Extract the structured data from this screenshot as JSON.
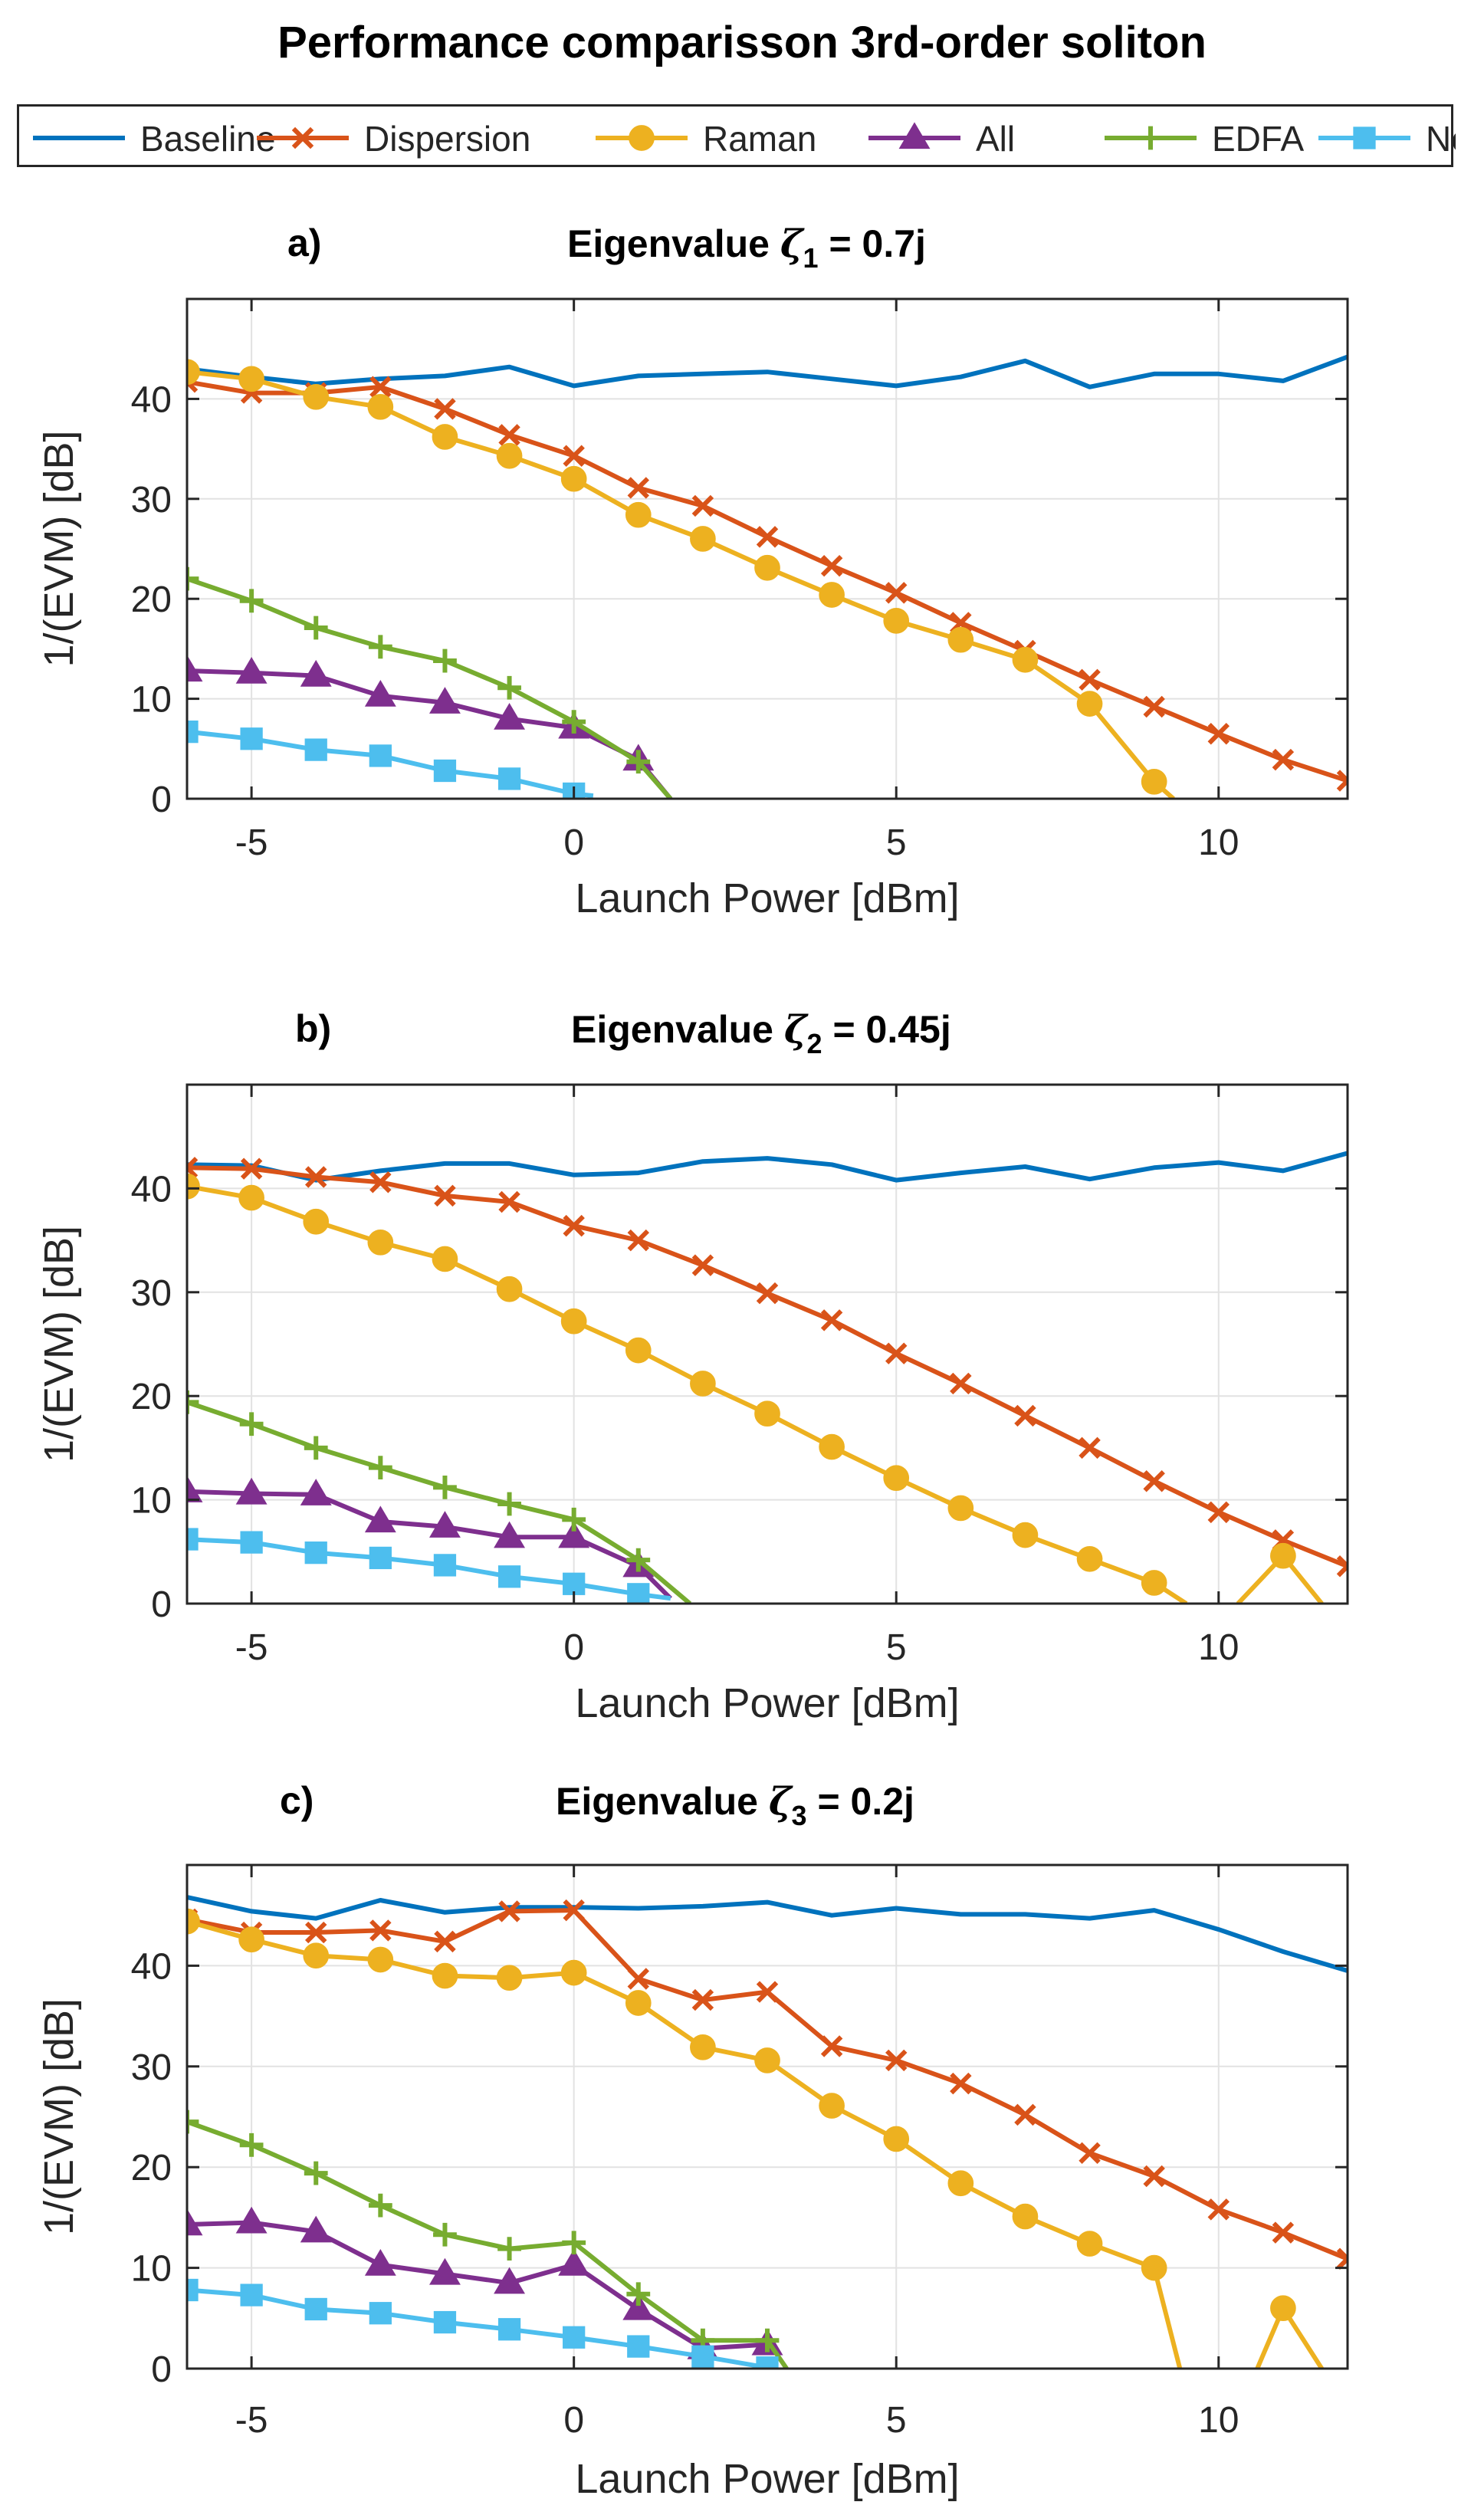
{
  "title": "Performance comparisson 3rd-order soliton",
  "legend": {
    "entries": [
      {
        "name": "Baseline",
        "color": "#0072BD",
        "marker": "none"
      },
      {
        "name": "Dispersion",
        "color": "#D95319",
        "marker": "x"
      },
      {
        "name": "Raman",
        "color": "#EDB120",
        "marker": "circle"
      },
      {
        "name": "All",
        "color": "#7E2F8E",
        "marker": "triangle"
      },
      {
        "name": "EDFA",
        "color": "#77AC30",
        "marker": "plus"
      },
      {
        "name": "Noise",
        "color": "#4DBEEE",
        "marker": "square"
      }
    ]
  },
  "chart_data": [
    {
      "type": "line",
      "label": "a)",
      "title_prefix": "Eigenvalue ",
      "title_symbol": "ζ",
      "title_subscript": "1",
      "title_suffix": " = 0.7j",
      "xlabel": "Launch Power [dBm]",
      "ylabel": "1/(EVM) [dB]",
      "xlim": [
        -6,
        12
      ],
      "ylim": [
        0,
        50
      ],
      "xticks": [
        -5,
        0,
        5,
        10
      ],
      "yticks": [
        0,
        10,
        20,
        30,
        40
      ],
      "grid": true,
      "series": [
        {
          "name": "Baseline",
          "x": [
            -6,
            -5,
            -4,
            -3,
            -2,
            -1,
            0,
            1,
            2,
            3,
            4,
            5,
            6,
            7,
            8,
            9,
            10,
            11,
            12
          ],
          "y": [
            43,
            42.2,
            41.5,
            42,
            42.3,
            43.2,
            41.3,
            42.3,
            42.5,
            42.7,
            42,
            41.3,
            42.2,
            43.8,
            41.2,
            42.5,
            42.5,
            41.8,
            44.2
          ]
        },
        {
          "name": "Dispersion",
          "x": [
            -6,
            -5,
            -4,
            -3,
            -2,
            -1,
            0,
            1,
            2,
            3,
            4,
            5,
            6,
            7,
            8,
            9,
            10,
            11,
            12
          ],
          "y": [
            41.7,
            40.6,
            40.6,
            41.2,
            39,
            36.4,
            34.3,
            31.1,
            29.3,
            26.2,
            23.3,
            20.6,
            17.6,
            14.8,
            11.9,
            9.2,
            6.5,
            3.9,
            1.8
          ]
        },
        {
          "name": "Raman",
          "x": [
            -6,
            -5,
            -4,
            -3,
            -2,
            -1,
            0,
            1,
            2,
            3,
            4,
            5,
            6,
            7,
            8,
            9,
            9.3
          ],
          "y": [
            42.7,
            42,
            40.2,
            39.2,
            36.2,
            34.3,
            32,
            28.4,
            26,
            23.1,
            20.4,
            17.8,
            15.9,
            13.9,
            9.5,
            1.7,
            0
          ]
        },
        {
          "name": "All",
          "x": [
            -6,
            -5,
            -4,
            -3,
            -2,
            -1,
            0,
            1,
            1.5
          ],
          "y": [
            12.8,
            12.6,
            12.3,
            10.3,
            9.6,
            8,
            7.1,
            3.9,
            0
          ]
        },
        {
          "name": "EDFA",
          "x": [
            -6,
            -5,
            -4,
            -3,
            -2,
            -1,
            0,
            1,
            1.5
          ],
          "y": [
            22,
            19.8,
            17.1,
            15.2,
            13.8,
            11.1,
            7.7,
            3.7,
            0
          ]
        },
        {
          "name": "Noise",
          "x": [
            -6,
            -5,
            -4,
            -3,
            -2,
            -1,
            0,
            0.3
          ],
          "y": [
            6.7,
            6,
            4.9,
            4.3,
            2.8,
            2,
            0.5,
            0.3
          ]
        }
      ]
    },
    {
      "type": "line",
      "label": "b)",
      "title_prefix": "Eigenvalue ",
      "title_symbol": "ζ",
      "title_subscript": "2",
      "title_suffix": " = 0.45j",
      "xlabel": "Launch Power [dBm]",
      "ylabel": "1/(EVM) [dB]",
      "xlim": [
        -6,
        12
      ],
      "ylim": [
        0,
        50
      ],
      "xticks": [
        -5,
        0,
        5,
        10
      ],
      "yticks": [
        0,
        10,
        20,
        30,
        40
      ],
      "grid": true,
      "series": [
        {
          "name": "Baseline",
          "x": [
            -6,
            -5,
            -4,
            -3,
            -2,
            -1,
            0,
            1,
            2,
            3,
            4,
            5,
            6,
            7,
            8,
            9,
            10,
            11,
            12
          ],
          "y": [
            42.3,
            42.2,
            40.8,
            41.7,
            42.4,
            42.4,
            41.3,
            41.5,
            42.6,
            42.9,
            42.3,
            40.8,
            41.5,
            42.1,
            40.9,
            42,
            42.5,
            41.7,
            43.4
          ]
        },
        {
          "name": "Dispersion",
          "x": [
            -6,
            -5,
            -4,
            -3,
            -2,
            -1,
            0,
            1,
            2,
            3,
            4,
            5,
            6,
            7,
            8,
            9,
            10,
            11,
            12
          ],
          "y": [
            42,
            41.9,
            41.1,
            40.6,
            39.3,
            38.7,
            36.4,
            35,
            32.6,
            29.9,
            27.3,
            24.1,
            21.2,
            18.1,
            15,
            11.8,
            8.8,
            6.1,
            3.6
          ]
        },
        {
          "name": "Raman",
          "x": [
            -6,
            -5,
            -4,
            -3,
            -2,
            -1,
            0,
            1,
            2,
            3,
            4,
            5,
            6,
            7,
            8,
            9,
            9.5,
            null,
            10.3,
            11,
            11.6
          ],
          "y": [
            40.2,
            39.1,
            36.8,
            34.8,
            33.2,
            30.3,
            27.2,
            24.4,
            21.2,
            18.3,
            15.1,
            12.1,
            9.2,
            6.6,
            4.3,
            2,
            0,
            null,
            0,
            4.6,
            0
          ]
        },
        {
          "name": "All",
          "x": [
            -6,
            -5,
            -4,
            -3,
            -2,
            -1,
            0,
            1,
            1.5
          ],
          "y": [
            10.8,
            10.6,
            10.5,
            7.9,
            7.4,
            6.4,
            6.4,
            3.6,
            0.5
          ]
        },
        {
          "name": "EDFA",
          "x": [
            -6,
            -5,
            -4,
            -3,
            -2,
            -1,
            0,
            1,
            1.8
          ],
          "y": [
            19.4,
            17.3,
            15,
            13.1,
            11.2,
            9.6,
            8.1,
            4.2,
            0
          ]
        },
        {
          "name": "Noise",
          "x": [
            -6,
            -5,
            -4,
            -3,
            -2,
            -1,
            0,
            1,
            1.5
          ],
          "y": [
            6.2,
            5.9,
            4.9,
            4.4,
            3.7,
            2.6,
            1.9,
            0.9,
            0.5
          ]
        }
      ]
    },
    {
      "type": "line",
      "label": "c)",
      "title_prefix": "Eigenvalue ",
      "title_symbol": "ζ",
      "title_subscript": "3",
      "title_suffix": "  = 0.2j",
      "xlabel": "Launch Power [dBm]",
      "ylabel": "1/(EVM) [dB]",
      "xlim": [
        -6,
        12
      ],
      "ylim": [
        0,
        50
      ],
      "xticks": [
        -5,
        0,
        5,
        10
      ],
      "yticks": [
        0,
        10,
        20,
        30,
        40
      ],
      "grid": true,
      "series": [
        {
          "name": "Baseline",
          "x": [
            -6,
            -5,
            -4,
            -3,
            -2,
            -1,
            0,
            1,
            2,
            3,
            4,
            5,
            6,
            7,
            8,
            9,
            10,
            11,
            12
          ],
          "y": [
            46.8,
            45.4,
            44.7,
            46.5,
            45.3,
            45.8,
            45.8,
            45.7,
            45.9,
            46.3,
            45,
            45.7,
            45.1,
            45.1,
            44.7,
            45.5,
            43.6,
            41.4,
            39.5
          ]
        },
        {
          "name": "Dispersion",
          "x": [
            -6,
            -5,
            -4,
            -3,
            -2,
            -1,
            0,
            1,
            2,
            3,
            4,
            5,
            6,
            7,
            8,
            9,
            10,
            11,
            12
          ],
          "y": [
            44.6,
            43.3,
            43.3,
            43.5,
            42.4,
            45.4,
            45.5,
            38.7,
            36.6,
            37.4,
            32,
            30.6,
            28.3,
            25.2,
            21.4,
            19.1,
            15.8,
            13.5,
            10.9
          ]
        },
        {
          "name": "Raman",
          "x": [
            -6,
            -5,
            -4,
            -3,
            -2,
            -1,
            0,
            1,
            2,
            3,
            4,
            5,
            6,
            7,
            8,
            9,
            9.4,
            null,
            10.6,
            11,
            11.6
          ],
          "y": [
            44.4,
            42.6,
            41,
            40.6,
            39,
            38.8,
            39.3,
            36.3,
            31.9,
            30.6,
            26.1,
            22.8,
            18.4,
            15.1,
            12.4,
            10,
            0,
            null,
            0,
            6,
            0
          ]
        },
        {
          "name": "All",
          "x": [
            -6,
            -5,
            -4,
            -3,
            -2,
            -1,
            0,
            1,
            2,
            3
          ],
          "y": [
            14.3,
            14.5,
            13.6,
            10.3,
            9.4,
            8.5,
            10.3,
            5.9,
            2,
            2.4
          ]
        },
        {
          "name": "EDFA",
          "x": [
            -6,
            -5,
            -4,
            -3,
            -2,
            -1,
            0,
            1,
            2,
            3,
            3.3
          ],
          "y": [
            24.5,
            22.2,
            19.4,
            16.2,
            13.3,
            11.9,
            12.5,
            7.4,
            2.8,
            2.8,
            0
          ]
        },
        {
          "name": "Noise",
          "x": [
            -6,
            -5,
            -4,
            -3,
            -2,
            -1,
            0,
            1,
            2,
            3
          ],
          "y": [
            7.8,
            7.3,
            5.9,
            5.5,
            4.6,
            3.9,
            3.1,
            2.2,
            1.2,
            0.1
          ]
        }
      ]
    }
  ]
}
